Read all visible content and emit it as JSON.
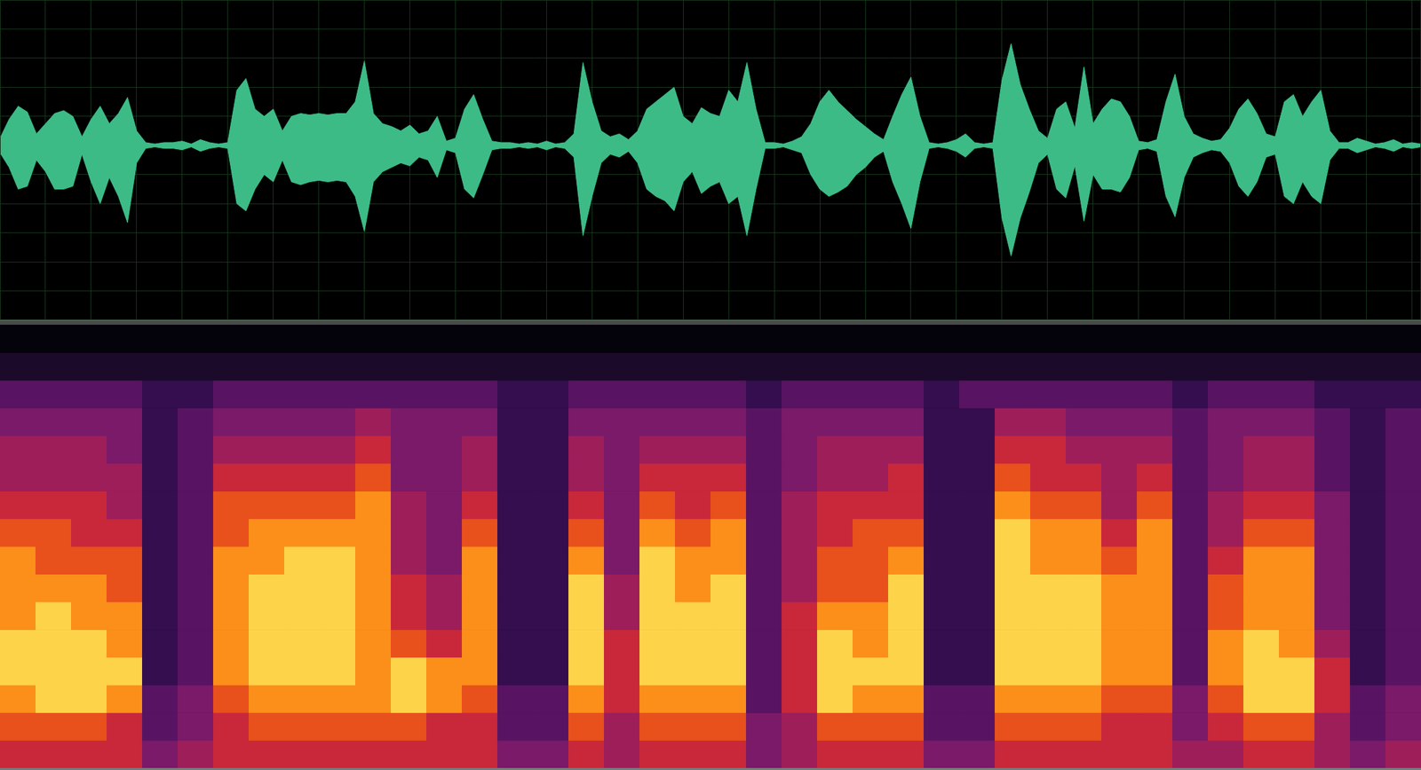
{
  "chart_data": [
    {
      "type": "line",
      "x": [
        0,
        1,
        2,
        3,
        4,
        5,
        6,
        7,
        8,
        9,
        10,
        11,
        12,
        13,
        14,
        15,
        16,
        17,
        18,
        19,
        20,
        21,
        22,
        23,
        24,
        25,
        26,
        27,
        28,
        29,
        30,
        31,
        32,
        33,
        34,
        35,
        36,
        37,
        38,
        39,
        40,
        41,
        42,
        43,
        44,
        45,
        46,
        47,
        48,
        49,
        50,
        51,
        52,
        53,
        54,
        55,
        56,
        57,
        58,
        59,
        60,
        61,
        62,
        63,
        64,
        65,
        66,
        67,
        68,
        69,
        70,
        71,
        72,
        73,
        74,
        75,
        76,
        77,
        78,
        79,
        80,
        81,
        82,
        83,
        84,
        85,
        86,
        87,
        88,
        89,
        90,
        91,
        92,
        93,
        94,
        95,
        96,
        97,
        98,
        99,
        100,
        101,
        102,
        103,
        104,
        105,
        106,
        107,
        108,
        109,
        110,
        111,
        112,
        113,
        114,
        115,
        116,
        117,
        118,
        119,
        120,
        121,
        122,
        123,
        124,
        125,
        126,
        127,
        128,
        129,
        130,
        131,
        132,
        133,
        134,
        135,
        136,
        137,
        138,
        139,
        140,
        141,
        142,
        143,
        144,
        145,
        146,
        147,
        148,
        149,
        150,
        151,
        152,
        153,
        154,
        155,
        156
      ],
      "series": [
        {
          "color": "#3dbb86",
          "values": [
            0.05,
            0.18,
            0.27,
            0.23,
            0.08,
            0.15,
            0.22,
            0.24,
            0.2,
            0.06,
            0.18,
            0.27,
            0.15,
            0.22,
            0.33,
            0.1,
            0.02,
            0.01,
            0.02,
            0.02,
            0.03,
            0.01,
            0.04,
            0.02,
            0.01,
            0.02,
            0.38,
            0.46,
            0.25,
            0.2,
            0.25,
            0.1,
            0.2,
            0.22,
            0.21,
            0.22,
            0.21,
            0.22,
            0.22,
            0.3,
            0.58,
            0.22,
            0.15,
            0.13,
            0.1,
            0.14,
            0.08,
            0.1,
            0.2,
            0.03,
            0.05,
            0.25,
            0.35,
            0.18,
            0.03,
            0.02,
            0.02,
            0.01,
            0.02,
            0.01,
            0.03,
            0.01,
            0.02,
            0.08,
            0.57,
            0.3,
            0.1,
            0.06,
            0.08,
            0.04,
            0.1,
            0.25,
            0.3,
            0.35,
            0.4,
            0.2,
            0.15,
            0.26,
            0.22,
            0.2,
            0.38,
            0.3,
            0.57,
            0.25,
            0.02,
            0.02,
            0.01,
            0.03,
            0.06,
            0.15,
            0.3,
            0.38,
            0.3,
            0.24,
            0.18,
            0.13,
            0.08,
            0.04,
            0.2,
            0.35,
            0.47,
            0.2,
            0.02,
            0.01,
            0.02,
            0.04,
            0.08,
            0.02,
            0.01,
            0.02,
            0.45,
            0.7,
            0.42,
            0.25,
            0.1,
            0.05,
            0.25,
            0.3,
            0.12,
            0.54,
            0.15,
            0.25,
            0.32,
            0.3,
            0.2,
            0.03,
            0.02,
            0.04,
            0.3,
            0.49,
            0.2,
            0.08,
            0.05,
            0.03,
            0.04,
            0.12,
            0.25,
            0.32,
            0.22,
            0.08,
            0.06,
            0.3,
            0.35,
            0.2,
            0.3,
            0.38,
            0.1,
            0.02,
            0.02,
            0.05,
            0.03,
            0.01,
            0.02,
            0.04,
            0.01,
            0.02,
            0.01
          ]
        },
        {
          "color": "#3dbb86",
          "values": [
            -0.05,
            -0.15,
            -0.3,
            -0.28,
            -0.1,
            -0.18,
            -0.3,
            -0.3,
            -0.28,
            -0.06,
            -0.25,
            -0.4,
            -0.22,
            -0.35,
            -0.53,
            -0.12,
            -0.02,
            -0.01,
            -0.02,
            -0.02,
            -0.03,
            -0.01,
            -0.04,
            -0.02,
            -0.01,
            -0.02,
            -0.4,
            -0.45,
            -0.3,
            -0.2,
            -0.25,
            -0.1,
            -0.25,
            -0.27,
            -0.25,
            -0.24,
            -0.25,
            -0.24,
            -0.25,
            -0.35,
            -0.59,
            -0.25,
            -0.18,
            -0.15,
            -0.12,
            -0.14,
            -0.08,
            -0.1,
            -0.22,
            -0.03,
            -0.05,
            -0.3,
            -0.36,
            -0.2,
            -0.03,
            -0.02,
            -0.02,
            -0.01,
            -0.02,
            -0.01,
            -0.03,
            -0.01,
            -0.02,
            -0.08,
            -0.62,
            -0.35,
            -0.12,
            -0.06,
            -0.08,
            -0.04,
            -0.12,
            -0.3,
            -0.35,
            -0.38,
            -0.45,
            -0.25,
            -0.18,
            -0.33,
            -0.28,
            -0.25,
            -0.4,
            -0.35,
            -0.62,
            -0.3,
            -0.02,
            -0.02,
            -0.01,
            -0.03,
            -0.05,
            -0.2,
            -0.3,
            -0.35,
            -0.32,
            -0.28,
            -0.2,
            -0.15,
            -0.08,
            -0.04,
            -0.25,
            -0.4,
            -0.57,
            -0.25,
            -0.02,
            -0.01,
            -0.02,
            -0.04,
            -0.08,
            -0.02,
            -0.01,
            -0.02,
            -0.5,
            -0.76,
            -0.5,
            -0.32,
            -0.12,
            -0.06,
            -0.3,
            -0.36,
            -0.14,
            -0.52,
            -0.2,
            -0.3,
            -0.3,
            -0.32,
            -0.22,
            -0.03,
            -0.02,
            -0.04,
            -0.35,
            -0.49,
            -0.22,
            -0.08,
            -0.05,
            -0.03,
            -0.04,
            -0.12,
            -0.28,
            -0.35,
            -0.25,
            -0.08,
            -0.06,
            -0.35,
            -0.4,
            -0.25,
            -0.35,
            -0.4,
            -0.1,
            -0.02,
            -0.02,
            -0.05,
            -0.03,
            -0.01,
            -0.02,
            -0.04,
            -0.01,
            -0.02,
            -0.01
          ]
        }
      ],
      "xlim": [
        0,
        156
      ],
      "xticks": [
        0,
        5,
        10,
        15,
        20,
        25,
        30,
        35,
        40,
        45,
        50,
        55,
        60,
        65,
        70,
        75,
        80,
        85,
        90,
        95,
        100,
        105,
        110,
        115,
        120,
        125,
        130,
        135,
        140,
        145,
        150,
        155
      ],
      "ylim": [
        -1.2,
        1
      ],
      "yticks": [
        -1.2,
        -1,
        -0.8,
        -0.6,
        -0.4,
        -0.2,
        0,
        0.2,
        0.4,
        0.6,
        0.8,
        1
      ],
      "grid": true,
      "tick_labels": false
    },
    {
      "type": "heatmap",
      "z": [
        [
          6,
          7,
          8,
          9,
          9,
          8,
          8,
          8,
          7,
          6,
          5,
          5,
          4,
          3,
          1,
          0
        ],
        [
          6,
          7,
          9,
          9,
          9,
          9,
          8,
          7,
          7,
          6,
          5,
          5,
          4,
          3,
          1,
          0
        ],
        [
          6,
          7,
          9,
          9,
          9,
          8,
          8,
          7,
          6,
          6,
          5,
          5,
          4,
          3,
          1,
          0
        ],
        [
          6,
          6,
          8,
          9,
          8,
          8,
          7,
          7,
          6,
          5,
          5,
          4,
          4,
          3,
          1,
          0
        ],
        [
          4,
          3,
          3,
          2,
          2,
          2,
          2,
          2,
          2,
          2,
          2,
          2,
          2,
          2,
          1,
          0
        ],
        [
          5,
          4,
          4,
          3,
          3,
          3,
          3,
          3,
          3,
          3,
          3,
          3,
          3,
          2,
          1,
          0
        ],
        [
          6,
          6,
          7,
          8,
          8,
          8,
          8,
          8,
          7,
          7,
          6,
          5,
          4,
          3,
          1,
          0
        ],
        [
          6,
          7,
          8,
          9,
          9,
          9,
          9,
          8,
          8,
          7,
          6,
          5,
          4,
          3,
          1,
          0
        ],
        [
          6,
          7,
          8,
          9,
          9,
          9,
          9,
          9,
          8,
          7,
          6,
          5,
          4,
          3,
          1,
          0
        ],
        [
          6,
          7,
          8,
          9,
          9,
          9,
          9,
          9,
          8,
          7,
          6,
          5,
          4,
          3,
          1,
          0
        ],
        [
          6,
          7,
          8,
          8,
          8,
          8,
          8,
          8,
          8,
          8,
          7,
          6,
          5,
          3,
          1,
          0
        ],
        [
          6,
          7,
          9,
          9,
          7,
          6,
          6,
          5,
          5,
          5,
          4,
          4,
          4,
          3,
          1,
          0
        ],
        [
          6,
          6,
          8,
          8,
          6,
          5,
          5,
          4,
          4,
          4,
          4,
          4,
          4,
          3,
          1,
          0
        ],
        [
          6,
          6,
          7,
          8,
          8,
          8,
          8,
          8,
          7,
          6,
          5,
          5,
          4,
          3,
          1,
          0
        ],
        [
          4,
          3,
          3,
          2,
          2,
          2,
          2,
          2,
          2,
          2,
          2,
          2,
          2,
          2,
          1,
          0
        ],
        [
          4,
          3,
          3,
          2,
          2,
          2,
          2,
          2,
          2,
          2,
          2,
          2,
          2,
          2,
          1,
          0
        ],
        [
          6,
          7,
          8,
          9,
          9,
          9,
          9,
          8,
          7,
          6,
          5,
          5,
          4,
          3,
          1,
          0
        ],
        [
          5,
          5,
          6,
          6,
          6,
          5,
          5,
          4,
          4,
          4,
          4,
          4,
          4,
          3,
          1,
          0
        ],
        [
          6,
          7,
          8,
          9,
          9,
          9,
          9,
          9,
          8,
          7,
          6,
          5,
          4,
          3,
          1,
          0
        ],
        [
          6,
          7,
          8,
          9,
          9,
          9,
          8,
          8,
          7,
          6,
          6,
          5,
          4,
          3,
          1,
          0
        ],
        [
          6,
          7,
          8,
          9,
          9,
          9,
          9,
          8,
          8,
          7,
          6,
          5,
          4,
          3,
          1,
          0
        ],
        [
          4,
          4,
          3,
          3,
          3,
          3,
          3,
          3,
          3,
          3,
          3,
          3,
          3,
          2,
          1,
          0
        ],
        [
          5,
          5,
          6,
          6,
          6,
          6,
          5,
          5,
          5,
          5,
          4,
          4,
          4,
          3,
          1,
          0
        ],
        [
          6,
          7,
          9,
          9,
          9,
          8,
          7,
          7,
          6,
          6,
          5,
          5,
          4,
          3,
          1,
          0
        ],
        [
          6,
          7,
          8,
          9,
          8,
          8,
          7,
          7,
          7,
          6,
          5,
          5,
          4,
          3,
          1,
          0
        ],
        [
          6,
          7,
          8,
          9,
          9,
          9,
          9,
          8,
          7,
          6,
          6,
          5,
          4,
          3,
          1,
          0
        ],
        [
          4,
          3,
          3,
          2,
          2,
          2,
          2,
          2,
          2,
          2,
          2,
          2,
          2,
          2,
          1,
          0
        ],
        [
          4,
          3,
          3,
          2,
          2,
          2,
          2,
          2,
          2,
          2,
          2,
          2,
          2,
          3,
          1,
          0
        ],
        [
          6,
          7,
          8,
          9,
          9,
          9,
          9,
          9,
          9,
          8,
          7,
          6,
          5,
          3,
          1,
          0
        ],
        [
          6,
          7,
          8,
          9,
          9,
          9,
          9,
          8,
          8,
          7,
          6,
          6,
          5,
          3,
          1,
          0
        ],
        [
          6,
          7,
          8,
          9,
          9,
          9,
          9,
          8,
          8,
          7,
          6,
          5,
          4,
          3,
          1,
          0
        ],
        [
          6,
          6,
          7,
          8,
          8,
          8,
          8,
          7,
          6,
          5,
          5,
          5,
          4,
          3,
          1,
          0
        ],
        [
          6,
          6,
          7,
          8,
          8,
          8,
          8,
          8,
          8,
          7,
          6,
          5,
          4,
          3,
          1,
          0
        ],
        [
          5,
          4,
          4,
          3,
          3,
          3,
          3,
          3,
          3,
          3,
          3,
          3,
          3,
          2,
          1,
          0
        ],
        [
          5,
          6,
          7,
          8,
          8,
          7,
          7,
          6,
          5,
          5,
          4,
          4,
          4,
          3,
          1,
          0
        ],
        [
          6,
          7,
          9,
          9,
          9,
          8,
          8,
          8,
          7,
          6,
          5,
          5,
          4,
          3,
          1,
          0
        ],
        [
          6,
          7,
          9,
          9,
          8,
          8,
          8,
          8,
          7,
          6,
          5,
          5,
          4,
          3,
          1,
          0
        ],
        [
          5,
          5,
          6,
          6,
          5,
          4,
          4,
          4,
          4,
          4,
          3,
          3,
          3,
          2,
          1,
          0
        ],
        [
          4,
          3,
          3,
          2,
          2,
          2,
          2,
          2,
          2,
          2,
          2,
          2,
          2,
          2,
          1,
          0
        ],
        [
          5,
          4,
          4,
          3,
          3,
          3,
          3,
          3,
          3,
          3,
          3,
          3,
          3,
          2,
          1,
          0
        ]
      ],
      "zlim": [
        0,
        10
      ],
      "xlim": [
        0,
        40
      ],
      "ylim": [
        0,
        16
      ],
      "grid": false,
      "tick_labels": false
    }
  ]
}
